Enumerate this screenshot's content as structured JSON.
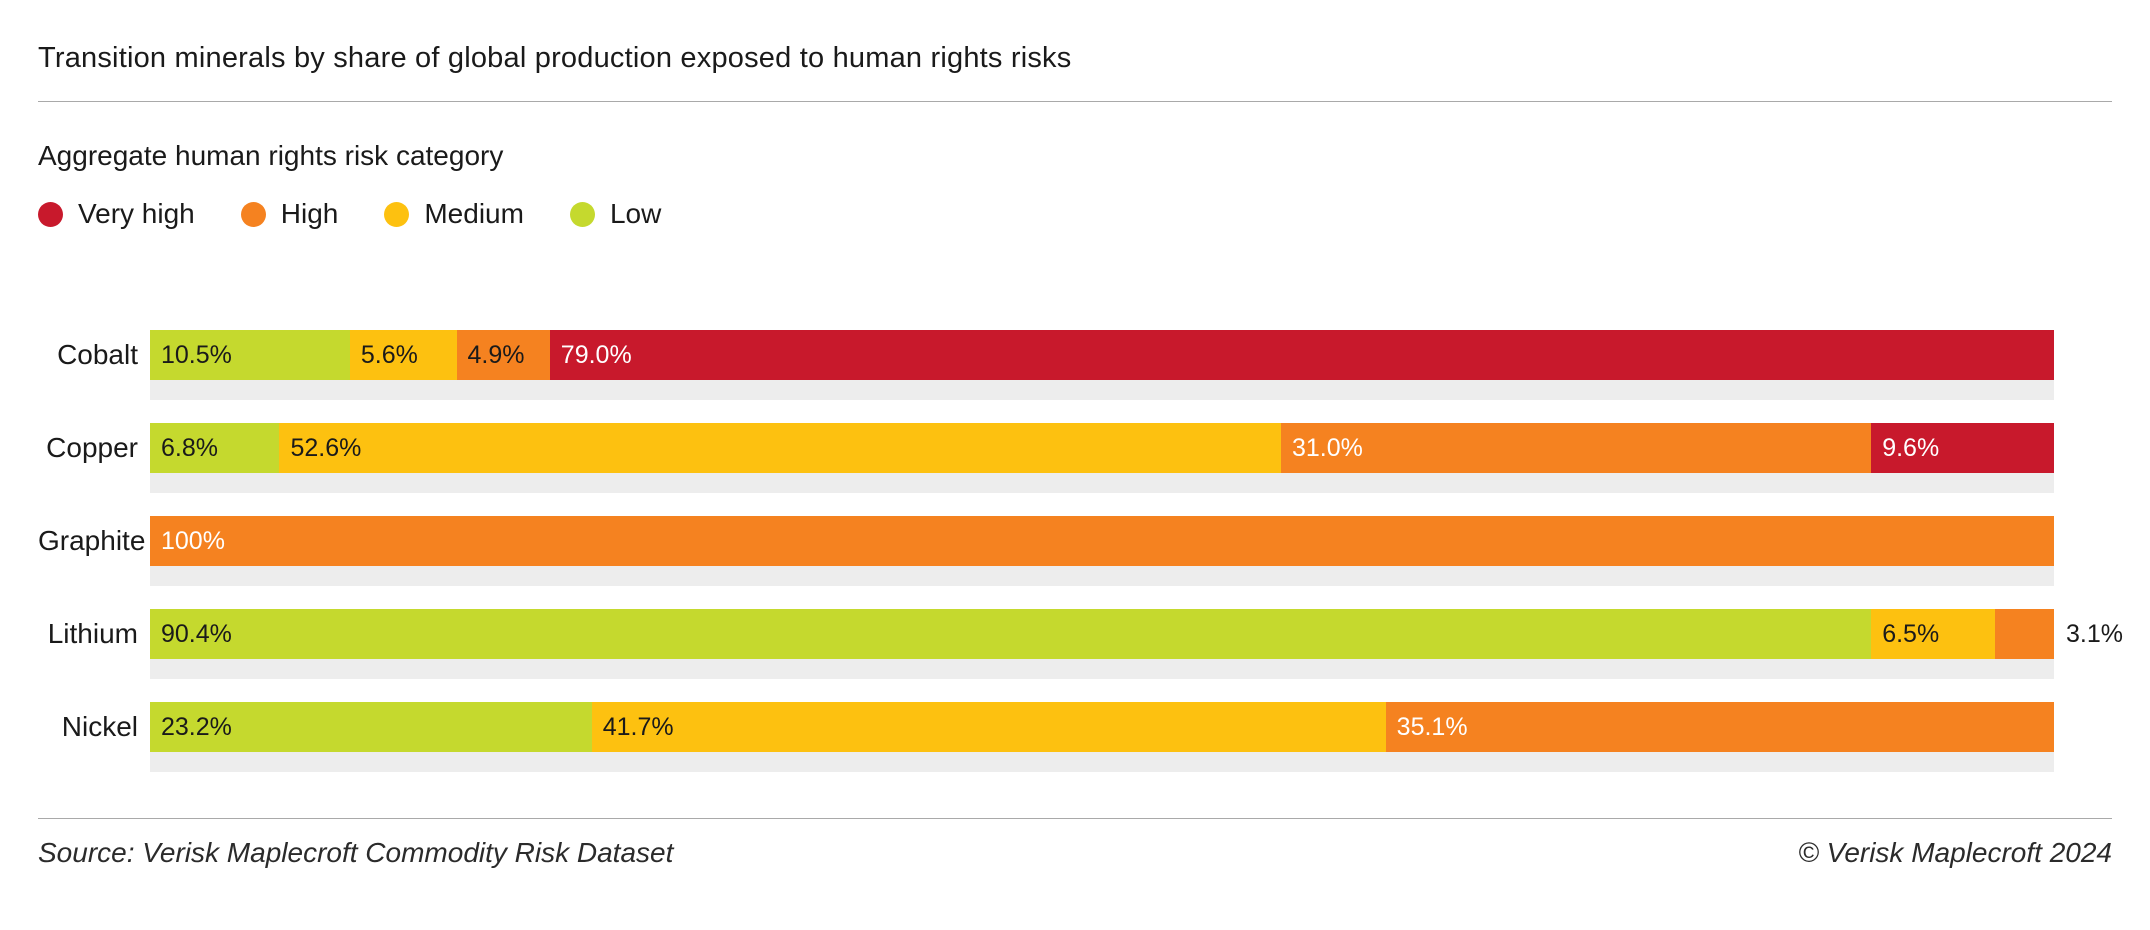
{
  "title": "Transition minerals by share of global production exposed to human rights risks",
  "legend": {
    "title": "Aggregate human rights risk category",
    "items": [
      {
        "label": "Very high",
        "color": "#c8192c"
      },
      {
        "label": "High",
        "color": "#f58220"
      },
      {
        "label": "Medium",
        "color": "#fdc110"
      },
      {
        "label": "Low",
        "color": "#c5d92e"
      }
    ]
  },
  "chart_data": {
    "type": "bar",
    "orientation": "horizontal",
    "stacked": true,
    "unit": "percent",
    "xlim": [
      0,
      100
    ],
    "grid": false,
    "legend_position": "top",
    "title": "Transition minerals by share of global production exposed to human rights risks",
    "xlabel": "",
    "ylabel": "",
    "categories": [
      "Cobalt",
      "Copper",
      "Graphite",
      "Lithium",
      "Nickel"
    ],
    "series": [
      {
        "name": "Low",
        "values": [
          10.5,
          6.8,
          0,
          90.4,
          23.2
        ]
      },
      {
        "name": "Medium",
        "values": [
          5.6,
          52.6,
          0,
          6.5,
          41.7
        ]
      },
      {
        "name": "High",
        "values": [
          4.9,
          31.0,
          100,
          3.1,
          35.1
        ]
      },
      {
        "name": "Very high",
        "values": [
          79.0,
          9.6,
          0,
          0,
          0
        ]
      }
    ],
    "rows": [
      {
        "label": "Cobalt",
        "segments": [
          {
            "category": "Low",
            "value": 10.5,
            "display": "10.5%",
            "label_color": "#1a1a1a"
          },
          {
            "category": "Medium",
            "value": 5.6,
            "display": "5.6%",
            "label_color": "#1a1a1a"
          },
          {
            "category": "High",
            "value": 4.9,
            "display": "4.9%",
            "label_color": "#1a1a1a"
          },
          {
            "category": "Very high",
            "value": 79.0,
            "display": "79.0%",
            "label_color": "#ffffff"
          }
        ]
      },
      {
        "label": "Copper",
        "segments": [
          {
            "category": "Low",
            "value": 6.8,
            "display": "6.8%",
            "label_color": "#1a1a1a"
          },
          {
            "category": "Medium",
            "value": 52.6,
            "display": "52.6%",
            "label_color": "#1a1a1a"
          },
          {
            "category": "High",
            "value": 31.0,
            "display": "31.0%",
            "label_color": "#ffffff"
          },
          {
            "category": "Very high",
            "value": 9.6,
            "display": "9.6%",
            "label_color": "#ffffff"
          }
        ]
      },
      {
        "label": "Graphite",
        "segments": [
          {
            "category": "High",
            "value": 100,
            "display": "100%",
            "label_color": "#ffffff"
          }
        ]
      },
      {
        "label": "Lithium",
        "segments": [
          {
            "category": "Low",
            "value": 90.4,
            "display": "90.4%",
            "label_color": "#1a1a1a"
          },
          {
            "category": "Medium",
            "value": 6.5,
            "display": "6.5%",
            "label_color": "#1a1a1a"
          },
          {
            "category": "High",
            "value": 3.1,
            "display": "3.1%",
            "label_color": "#1a1a1a",
            "label_position": "outside"
          }
        ]
      },
      {
        "label": "Nickel",
        "segments": [
          {
            "category": "Low",
            "value": 23.2,
            "display": "23.2%",
            "label_color": "#1a1a1a"
          },
          {
            "category": "Medium",
            "value": 41.7,
            "display": "41.7%",
            "label_color": "#1a1a1a"
          },
          {
            "category": "High",
            "value": 35.1,
            "display": "35.1%",
            "label_color": "#ffffff"
          }
        ]
      }
    ]
  },
  "footer": {
    "source": "Source: Verisk Maplecroft Commodity Risk Dataset",
    "copyright": "© Verisk Maplecroft 2024"
  },
  "colors": {
    "track": "#ededed",
    "rule": "#a9a9a9"
  }
}
